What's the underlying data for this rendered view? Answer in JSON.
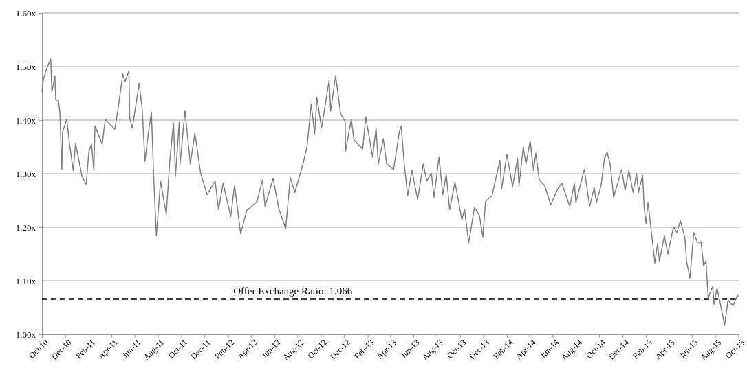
{
  "chart_data": {
    "type": "line",
    "grid": "y",
    "line_style": "solid",
    "marker": "none",
    "xlim": [
      "2010-10-01",
      "2015-10-02"
    ],
    "xticks": [
      {
        "value": "2010-10-01",
        "label": "Oct-10"
      },
      {
        "value": "2010-12-01",
        "label": "Dec-10"
      },
      {
        "value": "2011-02-01",
        "label": "Feb-11"
      },
      {
        "value": "2011-04-01",
        "label": "Apr-11"
      },
      {
        "value": "2011-06-01",
        "label": "Jun-11"
      },
      {
        "value": "2011-08-01",
        "label": "Aug-11"
      },
      {
        "value": "2011-10-01",
        "label": "Oct-11"
      },
      {
        "value": "2011-12-01",
        "label": "Dec-11"
      },
      {
        "value": "2012-02-01",
        "label": "Feb-12"
      },
      {
        "value": "2012-04-01",
        "label": "Apr-12"
      },
      {
        "value": "2012-06-01",
        "label": "Jun-12"
      },
      {
        "value": "2012-08-01",
        "label": "Aug-12"
      },
      {
        "value": "2012-10-01",
        "label": "Oct-12"
      },
      {
        "value": "2012-12-01",
        "label": "Dec-12"
      },
      {
        "value": "2013-02-01",
        "label": "Feb-13"
      },
      {
        "value": "2013-04-01",
        "label": "Apr-13"
      },
      {
        "value": "2013-06-01",
        "label": "Jun-13"
      },
      {
        "value": "2013-08-01",
        "label": "Aug-13"
      },
      {
        "value": "2013-10-01",
        "label": "Oct-13"
      },
      {
        "value": "2013-12-01",
        "label": "Dec-13"
      },
      {
        "value": "2014-02-01",
        "label": "Feb-14"
      },
      {
        "value": "2014-04-01",
        "label": "Apr-14"
      },
      {
        "value": "2014-06-01",
        "label": "Jun-14"
      },
      {
        "value": "2014-08-01",
        "label": "Aug-14"
      },
      {
        "value": "2014-10-01",
        "label": "Oct-14"
      },
      {
        "value": "2014-12-01",
        "label": "Dec-14"
      },
      {
        "value": "2015-02-01",
        "label": "Feb-15"
      },
      {
        "value": "2015-04-01",
        "label": "Apr-15"
      },
      {
        "value": "2015-06-01",
        "label": "Jun-15"
      },
      {
        "value": "2015-08-01",
        "label": "Aug-15"
      },
      {
        "value": "2015-10-01",
        "label": "Oct-15"
      }
    ],
    "ylim": [
      1.0,
      1.6
    ],
    "yticks": [
      {
        "value": 1.0,
        "label": "1.00x"
      },
      {
        "value": 1.1,
        "label": "1.10x"
      },
      {
        "value": 1.2,
        "label": "1.20x"
      },
      {
        "value": 1.3,
        "label": "1.30x"
      },
      {
        "value": 1.4,
        "label": "1.40x"
      },
      {
        "value": 1.5,
        "label": "1.50x"
      },
      {
        "value": 1.6,
        "label": "1.60x"
      }
    ],
    "ref_lines": [
      {
        "axis": "y",
        "value": 1.066,
        "label": "Offer Exchange Ratio: 1.066",
        "color": "#000000",
        "line_style": "dashed"
      }
    ],
    "series": [
      {
        "color": "#808080",
        "x": [
          "2010-10-01",
          "2010-10-05",
          "2010-10-14",
          "2010-10-24",
          "2010-10-27",
          "2010-11-04",
          "2010-11-06",
          "2010-11-13",
          "2010-11-17",
          "2010-11-22",
          "2010-11-24",
          "2010-12-05",
          "2010-12-12",
          "2010-12-22",
          "2010-12-28",
          "2011-01-14",
          "2011-01-25",
          "2011-02-01",
          "2011-02-08",
          "2011-02-14",
          "2011-02-17",
          "2011-03-08",
          "2011-03-16",
          "2011-04-10",
          "2011-04-19",
          "2011-05-01",
          "2011-05-07",
          "2011-05-17",
          "2011-05-19",
          "2011-05-26",
          "2011-06-13",
          "2011-06-21",
          "2011-06-28",
          "2011-07-07",
          "2011-07-15",
          "2011-07-21",
          "2011-07-28",
          "2011-08-08",
          "2011-08-23",
          "2011-09-01",
          "2011-09-11",
          "2011-09-16",
          "2011-09-26",
          "2011-09-28",
          "2011-10-11",
          "2011-10-25",
          "2011-11-06",
          "2011-11-21",
          "2011-12-08",
          "2011-12-29",
          "2012-01-07",
          "2012-01-19",
          "2012-02-08",
          "2012-02-18",
          "2012-03-05",
          "2012-03-21",
          "2012-04-17",
          "2012-05-01",
          "2012-05-08",
          "2012-05-29",
          "2012-06-13",
          "2012-07-01",
          "2012-07-13",
          "2012-07-25",
          "2012-08-15",
          "2012-08-26",
          "2012-09-06",
          "2012-09-15",
          "2012-09-21",
          "2012-10-03",
          "2012-10-23",
          "2012-10-27",
          "2012-11-09",
          "2012-11-22",
          "2012-12-04",
          "2012-12-05",
          "2012-12-20",
          "2012-12-27",
          "2013-01-19",
          "2013-01-27",
          "2013-02-14",
          "2013-02-23",
          "2013-03-01",
          "2013-03-14",
          "2013-03-23",
          "2013-04-10",
          "2013-04-25",
          "2013-04-30",
          "2013-05-08",
          "2013-05-17",
          "2013-05-28",
          "2013-06-12",
          "2013-06-27",
          "2013-07-06",
          "2013-07-18",
          "2013-07-25",
          "2013-08-07",
          "2013-08-17",
          "2013-08-26",
          "2013-09-04",
          "2013-09-18",
          "2013-10-06",
          "2013-10-13",
          "2013-10-24",
          "2013-11-08",
          "2013-11-21",
          "2013-11-30",
          "2013-12-07",
          "2013-12-24",
          "2014-01-14",
          "2014-01-18",
          "2014-01-28",
          "2014-02-01",
          "2014-02-16",
          "2014-03-01",
          "2014-03-05",
          "2014-03-16",
          "2014-03-23",
          "2014-04-03",
          "2014-04-12",
          "2014-04-18",
          "2014-04-27",
          "2014-05-11",
          "2014-05-27",
          "2014-06-14",
          "2014-06-25",
          "2014-07-16",
          "2014-07-28",
          "2014-08-01",
          "2014-08-23",
          "2014-09-06",
          "2014-09-18",
          "2014-09-24",
          "2014-10-06",
          "2014-10-15",
          "2014-10-22",
          "2014-10-30",
          "2014-11-08",
          "2014-11-29",
          "2014-12-08",
          "2014-12-18",
          "2014-12-29",
          "2015-01-07",
          "2015-01-12",
          "2015-01-23",
          "2015-01-27",
          "2015-02-01",
          "2015-02-06",
          "2015-02-14",
          "2015-02-24",
          "2015-03-03",
          "2015-03-08",
          "2015-03-21",
          "2015-03-30",
          "2015-04-14",
          "2015-04-23",
          "2015-05-02",
          "2015-05-14",
          "2015-05-18",
          "2015-05-27",
          "2015-06-06",
          "2015-06-16",
          "2015-06-25",
          "2015-07-02",
          "2015-07-08",
          "2015-07-14",
          "2015-07-26",
          "2015-07-29",
          "2015-08-06",
          "2015-08-15",
          "2015-08-26",
          "2015-09-04",
          "2015-09-17",
          "2015-09-29",
          "2015-10-01"
        ],
        "values": [
          1.453,
          1.477,
          1.498,
          1.514,
          1.453,
          1.483,
          1.438,
          1.436,
          1.415,
          1.308,
          1.378,
          1.402,
          1.357,
          1.306,
          1.357,
          1.295,
          1.28,
          1.342,
          1.355,
          1.306,
          1.389,
          1.355,
          1.402,
          1.383,
          1.423,
          1.486,
          1.472,
          1.492,
          1.404,
          1.385,
          1.469,
          1.419,
          1.323,
          1.376,
          1.415,
          1.293,
          1.184,
          1.286,
          1.224,
          1.323,
          1.395,
          1.295,
          1.397,
          1.317,
          1.418,
          1.318,
          1.376,
          1.301,
          1.261,
          1.286,
          1.233,
          1.282,
          1.22,
          1.278,
          1.188,
          1.231,
          1.248,
          1.288,
          1.239,
          1.291,
          1.235,
          1.197,
          1.293,
          1.265,
          1.317,
          1.35,
          1.43,
          1.374,
          1.442,
          1.385,
          1.474,
          1.417,
          1.483,
          1.412,
          1.397,
          1.342,
          1.402,
          1.363,
          1.346,
          1.406,
          1.331,
          1.385,
          1.318,
          1.365,
          1.318,
          1.308,
          1.378,
          1.389,
          1.317,
          1.259,
          1.306,
          1.252,
          1.318,
          1.286,
          1.301,
          1.256,
          1.331,
          1.261,
          1.299,
          1.233,
          1.284,
          1.214,
          1.233,
          1.171,
          1.237,
          1.222,
          1.182,
          1.248,
          1.259,
          1.325,
          1.271,
          1.317,
          1.336,
          1.276,
          1.329,
          1.278,
          1.35,
          1.318,
          1.361,
          1.306,
          1.338,
          1.288,
          1.278,
          1.242,
          1.271,
          1.282,
          1.239,
          1.282,
          1.246,
          1.308,
          1.239,
          1.274,
          1.246,
          1.278,
          1.329,
          1.34,
          1.317,
          1.256,
          1.308,
          1.269,
          1.306,
          1.265,
          1.301,
          1.265,
          1.297,
          1.237,
          1.207,
          1.246,
          1.197,
          1.133,
          1.169,
          1.137,
          1.184,
          1.15,
          1.201,
          1.19,
          1.212,
          1.18,
          1.137,
          1.105,
          1.19,
          1.171,
          1.173,
          1.128,
          1.137,
          1.068,
          1.09,
          1.056,
          1.086,
          1.056,
          1.017,
          1.064,
          1.053,
          1.073,
          1.071
        ]
      }
    ]
  }
}
